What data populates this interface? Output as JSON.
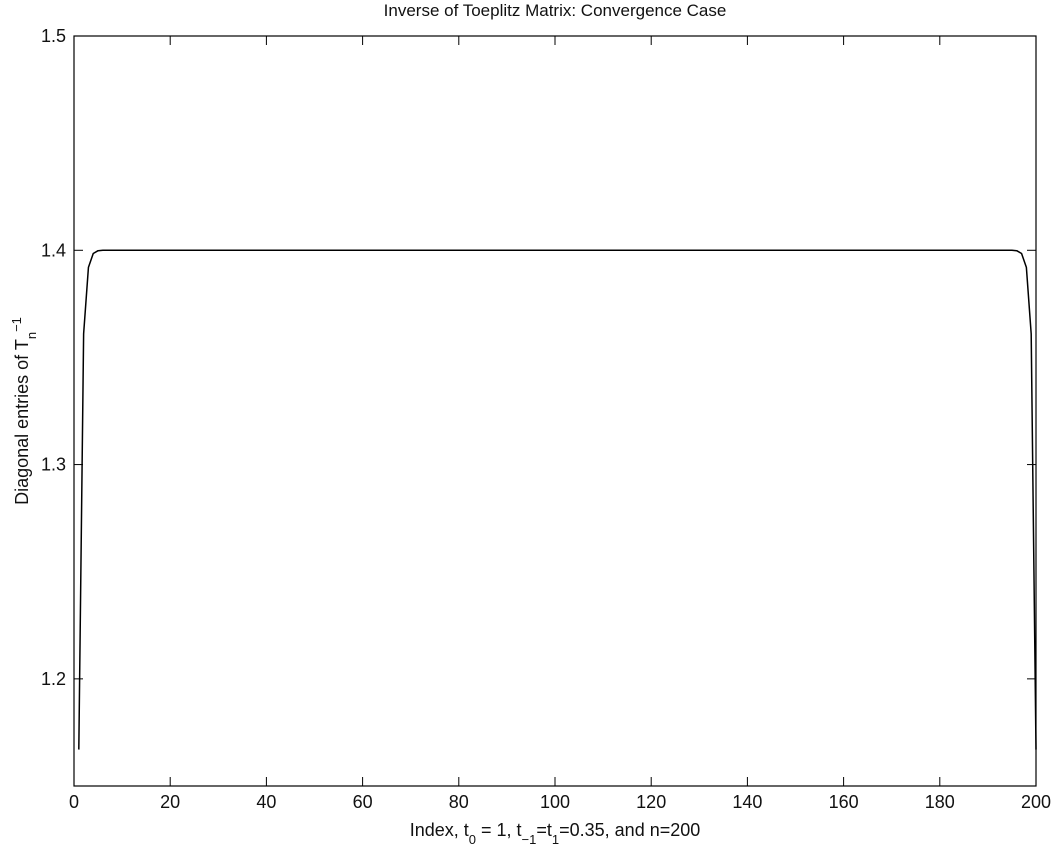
{
  "chart_data": {
    "type": "line",
    "title": "Inverse of Toeplitz Matrix: Convergence Case",
    "xlabel": {
      "parts": [
        {
          "text": "Index, t",
          "shift": "base"
        },
        {
          "text": "0",
          "shift": "sub"
        },
        {
          "text": " = 1, t",
          "shift": "base"
        },
        {
          "text": "−1",
          "shift": "sub"
        },
        {
          "text": "=t",
          "shift": "base"
        },
        {
          "text": "1",
          "shift": "sub"
        },
        {
          "text": "=0.35, and n=200",
          "shift": "base"
        }
      ]
    },
    "ylabel": {
      "parts": [
        {
          "text": "Diagonal entries of T",
          "shift": "base"
        },
        {
          "text": "n",
          "shift": "sub"
        },
        {
          "text": "−1",
          "shift": "super"
        }
      ]
    },
    "xlim": [
      0,
      200
    ],
    "ylim": [
      1.15,
      1.5
    ],
    "xticks": [
      0,
      20,
      40,
      60,
      80,
      100,
      120,
      140,
      160,
      180,
      200
    ],
    "yticks": [
      1.2,
      1.3,
      1.4,
      1.5
    ],
    "ytick_labels": [
      "1.2",
      "1.3",
      "1.4",
      "1.5"
    ],
    "grid": false,
    "series": [
      {
        "x": [
          1,
          2,
          3,
          4,
          5,
          6,
          10,
          50,
          100,
          150,
          190,
          195,
          196,
          197,
          198,
          199,
          200
        ],
        "y": [
          1.167,
          1.361,
          1.392,
          1.3985,
          1.3998,
          1.4,
          1.4,
          1.4,
          1.4,
          1.4,
          1.4,
          1.4,
          1.3998,
          1.3985,
          1.392,
          1.361,
          1.167
        ]
      }
    ]
  }
}
